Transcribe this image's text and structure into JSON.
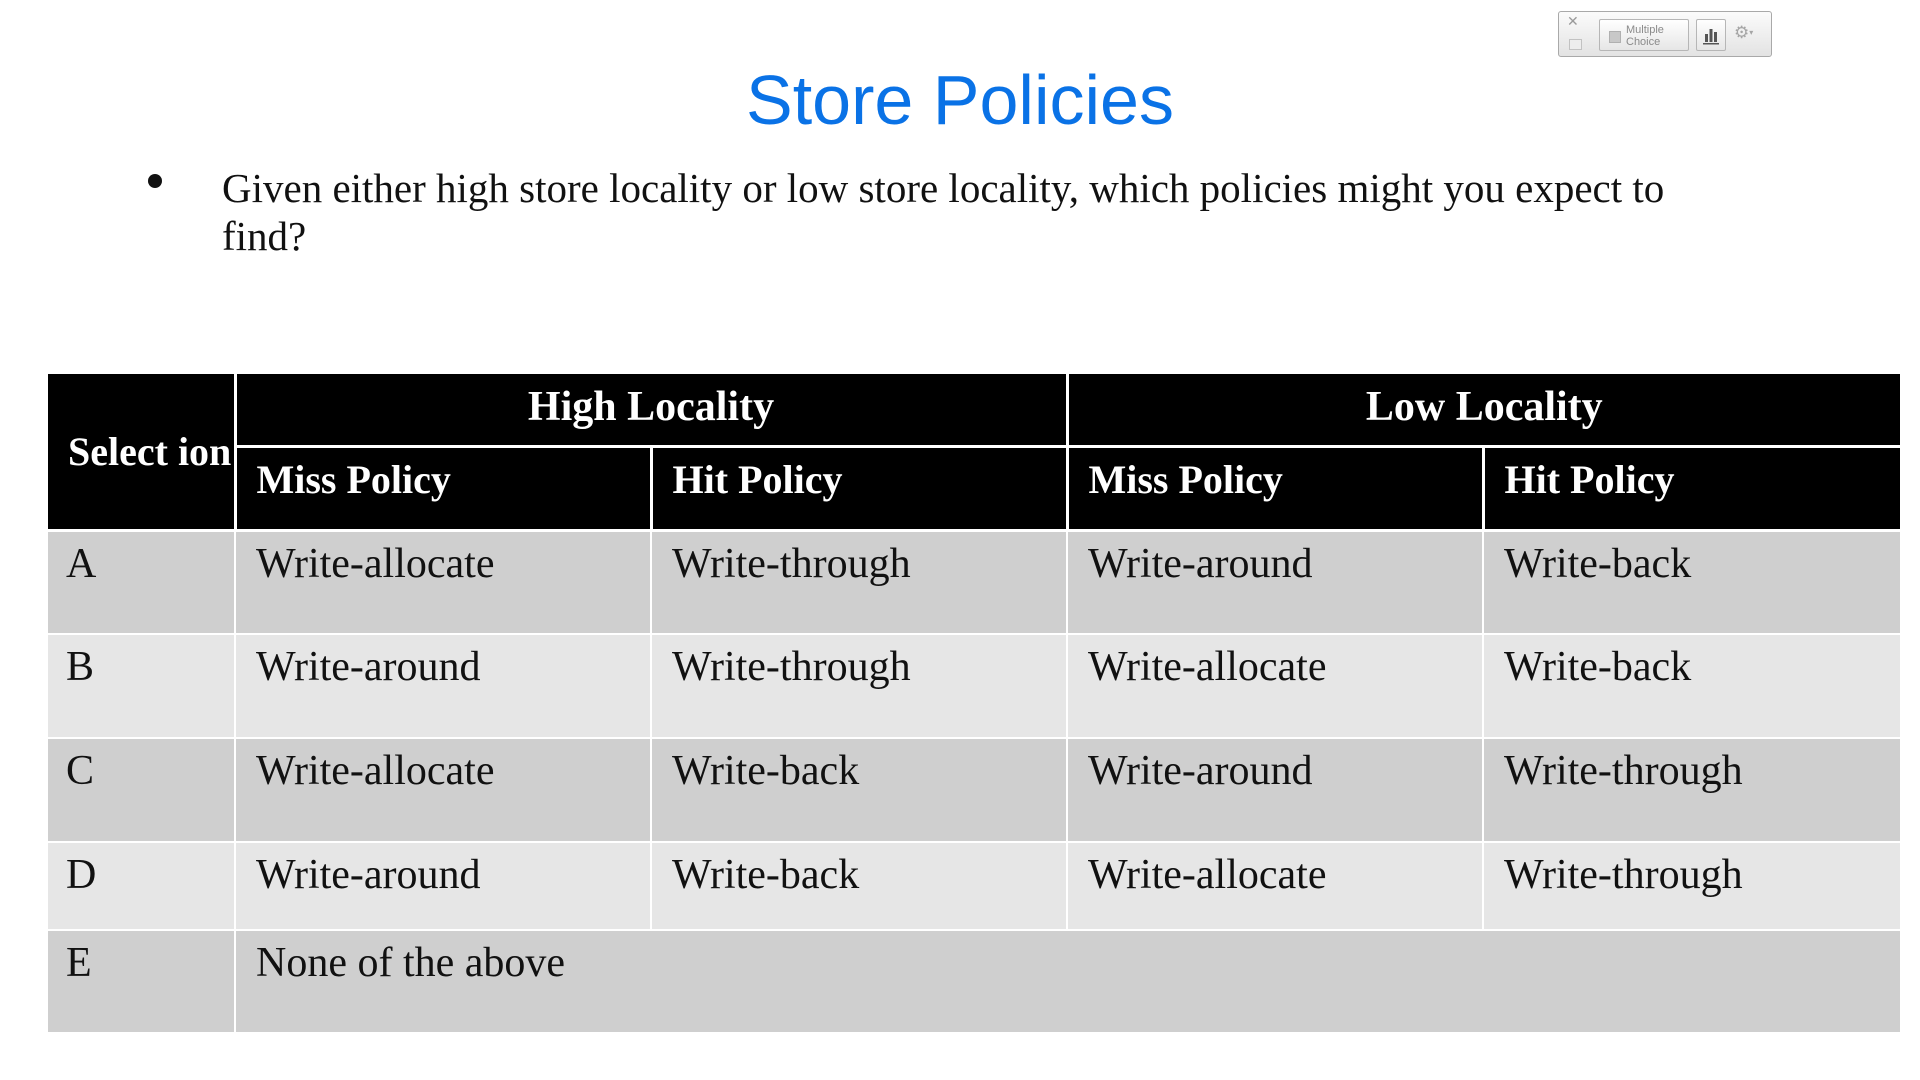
{
  "poll_toolbar": {
    "close_symbol": "✕",
    "question_type_label": "Multiple Choice",
    "icons": [
      "close-icon",
      "checkbox-icon",
      "bar-chart-icon",
      "gear-icon",
      "chevron-down-icon"
    ]
  },
  "slide": {
    "title": "Store Policies",
    "bullet": "Given either high store locality or low store locality, which policies might  you expect to find?"
  },
  "table": {
    "select_header": "Select ion",
    "groups": [
      "High Locality",
      "Low Locality"
    ],
    "sub_headers": [
      "Miss Policy",
      "Hit Policy",
      "Miss Policy",
      "Hit Policy"
    ],
    "rows": [
      {
        "option": "A",
        "cells": [
          "Write-allocate",
          "Write-through",
          "Write-around",
          "Write-back"
        ]
      },
      {
        "option": "B",
        "cells": [
          "Write-around",
          "Write-through",
          "Write-allocate",
          "Write-back"
        ]
      },
      {
        "option": "C",
        "cells": [
          "Write-allocate",
          "Write-back",
          "Write-around",
          "Write-through"
        ]
      },
      {
        "option": "D",
        "cells": [
          "Write-around",
          "Write-back",
          "Write-allocate",
          "Write-through"
        ]
      }
    ],
    "last_row": {
      "option": "E",
      "text": "None of the above"
    }
  },
  "colors": {
    "title": "#0a72e6",
    "header_bg": "#000000",
    "row_dark": "#cfcfcf",
    "row_light": "#e6e6e6"
  }
}
